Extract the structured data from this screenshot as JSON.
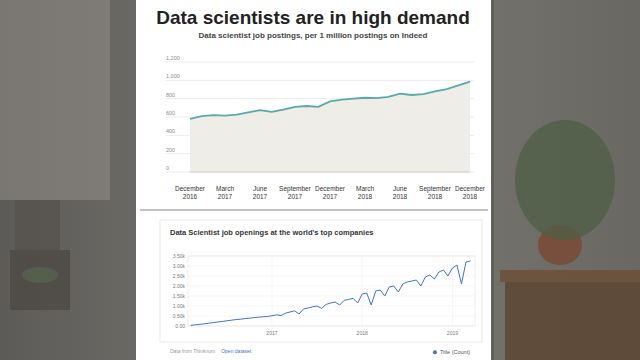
{
  "chart_data": [
    {
      "type": "area",
      "title": "Data scientists are in high demand",
      "subtitle": "Data scientist job postings, per 1 million postings on Indeed",
      "categories": [
        "December 2016",
        null,
        null,
        "March 2017",
        null,
        null,
        "June 2017",
        null,
        null,
        "September 2017",
        null,
        null,
        "December 2017",
        null,
        null,
        "March 2018",
        null,
        null,
        "June 2018",
        null,
        null,
        "September 2018",
        null,
        null,
        "December 2018"
      ],
      "values": [
        580,
        610,
        620,
        615,
        625,
        650,
        675,
        655,
        680,
        710,
        720,
        710,
        770,
        790,
        800,
        810,
        805,
        820,
        855,
        840,
        850,
        880,
        905,
        945,
        985
      ],
      "color": "#5aa9a9",
      "ylim": [
        0,
        1200
      ],
      "yticks": [
        0,
        200,
        400,
        600,
        800,
        {
          "value": 1000,
          "label": "1,000"
        },
        {
          "value": 1200,
          "label": "1,200"
        }
      ],
      "grid": true
    },
    {
      "type": "line",
      "title": "Data Scientist job openings at the world's top companies",
      "x": [
        2016.1,
        2016.15,
        2016.2,
        2016.25,
        2016.3,
        2016.35,
        2016.4,
        2016.45,
        2016.5,
        2016.55,
        2016.6,
        2016.65,
        2016.7,
        2016.75,
        2016.8,
        2016.85,
        2016.9,
        2016.95,
        2017.0,
        2017.05,
        2017.1,
        2017.15,
        2017.2,
        2017.25,
        2017.3,
        2017.35,
        2017.4,
        2017.45,
        2017.5,
        2017.55,
        2017.6,
        2017.65,
        2017.7,
        2017.75,
        2017.8,
        2017.85,
        2017.9,
        2017.95,
        2018.0,
        2018.05,
        2018.1,
        2018.15,
        2018.2,
        2018.25,
        2018.3,
        2018.35,
        2018.4,
        2018.45,
        2018.5,
        2018.55,
        2018.6,
        2018.65,
        2018.7,
        2018.75,
        2018.8,
        2018.85,
        2018.9,
        2018.95,
        2019.0,
        2019.05,
        2019.1,
        2019.15,
        2019.2
      ],
      "series": [
        {
          "name": "Title (Count)",
          "color": "#3f73c9",
          "values": [
            30,
            60,
            80,
            110,
            140,
            170,
            200,
            230,
            260,
            290,
            320,
            340,
            370,
            390,
            420,
            440,
            460,
            480,
            510,
            560,
            520,
            640,
            700,
            760,
            600,
            850,
            900,
            960,
            1000,
            880,
            1080,
            1150,
            1200,
            1050,
            1280,
            1330,
            1380,
            1150,
            1600,
            1650,
            1050,
            1750,
            1800,
            1500,
            1950,
            2000,
            1700,
            2100,
            2200,
            2250,
            2300,
            2000,
            2450,
            2550,
            2350,
            2700,
            2800,
            2500,
            2900,
            3050,
            2100,
            3200,
            3250
          ]
        }
      ],
      "xlim": [
        2016.07,
        2019.25
      ],
      "xticks": [
        2017,
        2018,
        2019
      ],
      "ylim": [
        0,
        3500
      ],
      "yticks": [
        {
          "value": 0,
          "label": "0.00"
        },
        {
          "value": 500,
          "label": "0.50k"
        },
        {
          "value": 1000,
          "label": "1.00k"
        },
        {
          "value": 1500,
          "label": "1.50k"
        },
        {
          "value": 2000,
          "label": "2.00k"
        },
        {
          "value": 2500,
          "label": "2.50k"
        },
        {
          "value": 3000,
          "label": "3.00k"
        },
        {
          "value": 3500,
          "label": "3.50k"
        }
      ],
      "grid": true,
      "legend": "bottom-right",
      "annotations": [
        "Data from Thinknum",
        "Open dataset"
      ]
    }
  ]
}
